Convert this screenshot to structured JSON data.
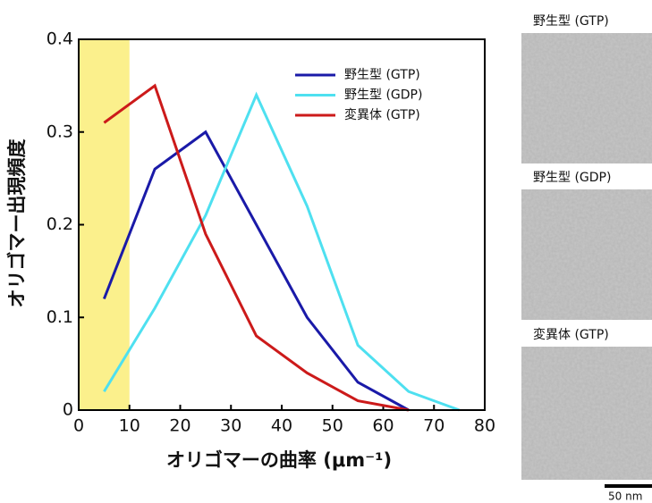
{
  "chart_data": {
    "type": "line",
    "x_label": "オリゴマーの曲率 (μm⁻¹)",
    "y_label": "オリゴマー出現頻度",
    "x": [
      5,
      15,
      25,
      35,
      45,
      55,
      65,
      75
    ],
    "series": [
      {
        "name": "野生型 (GTP)",
        "color": "#1a1aa8",
        "values": [
          0.12,
          0.26,
          0.3,
          0.2,
          0.1,
          0.03,
          0.0,
          null
        ]
      },
      {
        "name": "野生型 (GDP)",
        "color": "#4ee0f0",
        "values": [
          0.02,
          0.11,
          0.21,
          0.34,
          0.22,
          0.07,
          0.02,
          0.0
        ]
      },
      {
        "name": "変異体 (GTP)",
        "color": "#cc1a1a",
        "values": [
          0.31,
          0.35,
          0.19,
          0.08,
          0.04,
          0.01,
          0.0,
          null
        ]
      }
    ],
    "shaded_x": [
      0,
      10
    ],
    "shade_color": "#fbf08c",
    "xlim": [
      0,
      80
    ],
    "xticks": [
      0,
      10,
      20,
      30,
      40,
      50,
      60,
      70,
      80
    ],
    "ylim": [
      0,
      0.4
    ],
    "yticks": [
      0,
      0.1,
      0.2,
      0.3,
      0.4
    ],
    "legend": "upper right",
    "images": [
      {
        "label": "野生型 (GTP)"
      },
      {
        "label": "野生型 (GDP)"
      },
      {
        "label": "変異体 (GTP)"
      }
    ],
    "scale_bar": "50 nm"
  }
}
